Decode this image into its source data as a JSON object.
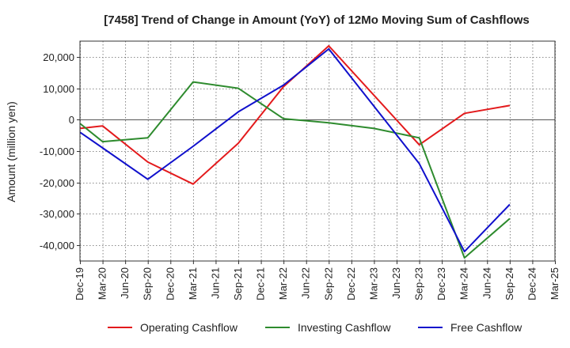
{
  "chart_data": {
    "type": "line",
    "title": "[7458]  Trend of Change in Amount (YoY) of 12Mo Moving Sum of Cashflows",
    "xlabel": "",
    "ylabel": "Amount (million yen)",
    "categories": [
      "Dec-19",
      "Mar-20",
      "Jun-20",
      "Sep-20",
      "Dec-20",
      "Mar-21",
      "Jun-21",
      "Sep-21",
      "Dec-21",
      "Mar-22",
      "Jun-22",
      "Sep-22",
      "Dec-22",
      "Mar-23",
      "Jun-23",
      "Sep-23",
      "Dec-23",
      "Mar-24",
      "Jun-24",
      "Sep-24",
      "Dec-24",
      "Mar-25"
    ],
    "ylim": [
      -45000,
      25000
    ],
    "yticks": [
      20000,
      10000,
      0,
      -10000,
      -20000,
      -30000,
      -40000
    ],
    "ytick_labels": [
      "20,000",
      "10,000",
      "0",
      "-10,000",
      "-20,000",
      "-30,000",
      "-40,000"
    ],
    "series": [
      {
        "name": "Operating Cashflow",
        "color": "#e31a1c",
        "values": [
          -2800,
          -2000,
          null,
          -13500,
          null,
          -20500,
          null,
          -7500,
          null,
          10500,
          null,
          23500,
          null,
          null,
          null,
          -8000,
          null,
          2000,
          null,
          4500,
          null,
          null
        ]
      },
      {
        "name": "Investing Cashflow",
        "color": "#2e8b2e",
        "values": [
          -1200,
          -7000,
          null,
          -5800,
          null,
          12000,
          null,
          10000,
          null,
          300,
          null,
          -1000,
          null,
          -2800,
          null,
          -5800,
          null,
          -44000,
          null,
          -31500,
          null,
          null
        ]
      },
      {
        "name": "Free Cashflow",
        "color": "#1010cc",
        "values": [
          -4000,
          -9000,
          null,
          -19000,
          null,
          -8500,
          null,
          2500,
          null,
          11000,
          null,
          22500,
          null,
          null,
          null,
          -14000,
          null,
          -42000,
          null,
          -27000,
          null,
          null
        ]
      }
    ],
    "legend_position": "bottom"
  }
}
